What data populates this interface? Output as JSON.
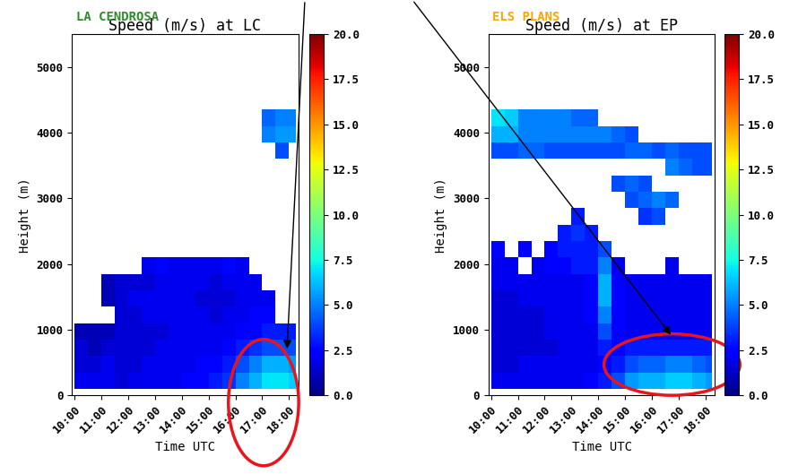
{
  "chart_data": [
    {
      "type": "heatmap",
      "subtitle": "LA CENDROSA",
      "color": "#2e8b2e",
      "title": "Speed (m/s) at LC",
      "x_label": "Time UTC",
      "y_label": "Height (m)",
      "xlim": [
        9.9,
        18.35
      ],
      "xticks": [
        {
          "value": 10,
          "label": "10:00"
        },
        {
          "value": 11,
          "label": "11:00"
        },
        {
          "value": 12,
          "label": "12:00"
        },
        {
          "value": 13,
          "label": "13:00"
        },
        {
          "value": 14,
          "label": "14:00"
        },
        {
          "value": 15,
          "label": "15:00"
        },
        {
          "value": 16,
          "label": "16:00"
        },
        {
          "value": 17,
          "label": "17:00"
        },
        {
          "value": 18,
          "label": "18:00"
        }
      ],
      "ylim": [
        0,
        5500
      ],
      "yticks": [
        0,
        1000,
        2000,
        3000,
        4000,
        5000
      ],
      "x_bins": [
        10,
        10.5,
        11,
        11.5,
        12,
        12.5,
        13,
        13.5,
        14,
        14.5,
        15,
        15.5,
        16,
        16.5,
        17,
        17.5,
        18,
        18.25
      ],
      "y_bins": [
        100,
        350,
        600,
        850,
        1100,
        1350,
        1600,
        1850,
        2100,
        2350,
        2600,
        2850,
        3100,
        3350,
        3600,
        3850,
        4100,
        4350
      ],
      "cells": [
        [
          2,
          2,
          2,
          1.5,
          2,
          2,
          2,
          2,
          2.5,
          2.5,
          3,
          3.5,
          5,
          6,
          7,
          7,
          6.5
        ],
        [
          1.5,
          1.5,
          2,
          1.5,
          1.5,
          2,
          2,
          2,
          2,
          2.5,
          2.5,
          3,
          4,
          5,
          6,
          6,
          5.5
        ],
        [
          1.5,
          1,
          1.5,
          1.5,
          1.5,
          1.5,
          2,
          2,
          2,
          2,
          2,
          2.5,
          3,
          3.5,
          4,
          4,
          4
        ],
        [
          1,
          1,
          1,
          1.5,
          1.5,
          1.5,
          1.5,
          2,
          2,
          2,
          2,
          2,
          2.5,
          2.5,
          3,
          3,
          3
        ],
        [
          null,
          null,
          null,
          1.5,
          1.5,
          2,
          2,
          2,
          2,
          2,
          1.5,
          2,
          2,
          2.5,
          2.5,
          null,
          null
        ],
        [
          null,
          null,
          1,
          1.5,
          2,
          2,
          2,
          2,
          2,
          1.5,
          1.5,
          1.5,
          2,
          2,
          2,
          null,
          null
        ],
        [
          null,
          null,
          1,
          1.5,
          1.5,
          1.5,
          2,
          2,
          2,
          2,
          1.5,
          2,
          2,
          2,
          null,
          null,
          null
        ],
        [
          null,
          null,
          null,
          null,
          null,
          2,
          2.5,
          2,
          2,
          2,
          2,
          2.5,
          2,
          null,
          null,
          null,
          null
        ],
        [
          null,
          null,
          null,
          null,
          null,
          null,
          null,
          null,
          null,
          null,
          null,
          null,
          null,
          null,
          null,
          null,
          null
        ],
        [
          null,
          null,
          null,
          null,
          null,
          null,
          null,
          null,
          null,
          null,
          null,
          null,
          null,
          null,
          null,
          null,
          null
        ],
        [
          null,
          null,
          null,
          null,
          null,
          null,
          null,
          null,
          null,
          null,
          null,
          null,
          null,
          null,
          null,
          null,
          null
        ],
        [
          null,
          null,
          null,
          null,
          null,
          null,
          null,
          null,
          null,
          null,
          null,
          null,
          null,
          null,
          null,
          null,
          null
        ],
        [
          null,
          null,
          null,
          null,
          null,
          null,
          null,
          null,
          null,
          null,
          null,
          null,
          null,
          null,
          null,
          null,
          null
        ],
        [
          null,
          null,
          null,
          null,
          null,
          null,
          null,
          null,
          null,
          null,
          null,
          null,
          null,
          null,
          null,
          null,
          null
        ],
        [
          null,
          null,
          null,
          null,
          null,
          null,
          null,
          null,
          null,
          null,
          null,
          null,
          null,
          null,
          null,
          4,
          null
        ],
        [
          null,
          null,
          null,
          null,
          null,
          null,
          null,
          null,
          null,
          null,
          null,
          null,
          null,
          null,
          5,
          5.5,
          5.5
        ],
        [
          null,
          null,
          null,
          null,
          null,
          null,
          null,
          null,
          null,
          null,
          null,
          null,
          null,
          null,
          4.5,
          5,
          5
        ]
      ],
      "colorbar": {
        "range": [
          0,
          20
        ],
        "ticks": [
          {
            "value": 0,
            "label": "0.0"
          },
          {
            "value": 2.5,
            "label": "2.5"
          },
          {
            "value": 5,
            "label": "5.0"
          },
          {
            "value": 7.5,
            "label": "7.5"
          },
          {
            "value": 10,
            "label": "10.0"
          },
          {
            "value": 12.5,
            "label": "12.5"
          },
          {
            "value": 15,
            "label": "15.0"
          },
          {
            "value": 17.5,
            "label": "17.5"
          },
          {
            "value": 20,
            "label": "20.0"
          }
        ]
      }
    },
    {
      "type": "heatmap",
      "subtitle": "ELS PLANS",
      "color": "#ffa500",
      "title": "Speed (m/s) at EP",
      "x_label": "Time UTC",
      "y_label": "Height (m)",
      "xlim": [
        9.9,
        18.35
      ],
      "xticks": [
        {
          "value": 10,
          "label": "10:00"
        },
        {
          "value": 11,
          "label": "11:00"
        },
        {
          "value": 12,
          "label": "12:00"
        },
        {
          "value": 13,
          "label": "13:00"
        },
        {
          "value": 14,
          "label": "14:00"
        },
        {
          "value": 15,
          "label": "15:00"
        },
        {
          "value": 16,
          "label": "16:00"
        },
        {
          "value": 17,
          "label": "17:00"
        },
        {
          "value": 18,
          "label": "18:00"
        }
      ],
      "ylim": [
        0,
        5500
      ],
      "yticks": [
        0,
        1000,
        2000,
        3000,
        4000,
        5000
      ],
      "x_bins": [
        10,
        10.5,
        11,
        11.5,
        12,
        12.5,
        13,
        13.5,
        14,
        14.5,
        15,
        15.5,
        16,
        16.5,
        17,
        17.5,
        18,
        18.25
      ],
      "y_bins": [
        100,
        350,
        600,
        850,
        1100,
        1350,
        1600,
        1850,
        2100,
        2350,
        2600,
        2850,
        3100,
        3350,
        3600,
        3850,
        4100,
        4350
      ],
      "cells": [
        [
          2,
          2,
          2,
          2,
          2,
          2,
          2,
          2.5,
          3,
          4,
          5.5,
          6,
          6,
          6.5,
          6.5,
          6,
          5.5
        ],
        [
          1.5,
          1.5,
          2,
          2,
          2,
          2,
          2,
          2,
          2.5,
          3,
          4,
          4.5,
          4.5,
          5,
          5,
          4.5,
          4
        ],
        [
          1.5,
          1.5,
          1.5,
          1.5,
          1.5,
          2,
          2,
          2,
          3,
          2.5,
          3,
          3,
          3,
          3,
          3,
          3,
          3
        ],
        [
          1.5,
          1.5,
          1.5,
          1.5,
          2,
          2,
          2,
          2,
          4,
          2.5,
          2,
          2,
          2,
          2,
          2,
          2,
          2
        ],
        [
          1.5,
          1.5,
          1.5,
          1.5,
          2,
          2,
          2,
          2.5,
          5,
          2.5,
          2,
          2,
          2,
          2,
          2,
          2,
          2
        ],
        [
          1.5,
          1.5,
          2,
          2,
          2,
          2,
          2,
          2.5,
          6,
          2.5,
          2,
          2,
          2,
          2,
          2,
          2,
          2
        ],
        [
          2,
          2,
          2,
          2,
          2,
          2,
          2,
          2.5,
          6,
          2.5,
          2,
          2,
          2,
          2,
          2,
          2,
          2
        ],
        [
          2,
          2,
          null,
          2,
          2.5,
          2.5,
          3,
          3,
          5,
          2,
          null,
          null,
          null,
          2,
          null,
          null,
          null
        ],
        [
          2.5,
          null,
          2.5,
          null,
          2.5,
          3,
          3,
          3,
          4,
          null,
          null,
          null,
          null,
          null,
          null,
          null,
          null
        ],
        [
          null,
          null,
          null,
          null,
          null,
          3,
          3.5,
          3,
          null,
          null,
          null,
          null,
          null,
          null,
          null,
          null,
          null
        ],
        [
          null,
          null,
          null,
          null,
          null,
          null,
          3,
          null,
          null,
          null,
          null,
          3.5,
          4,
          null,
          null,
          null,
          null
        ],
        [
          null,
          null,
          null,
          null,
          null,
          null,
          null,
          null,
          null,
          null,
          4,
          4.5,
          5,
          4.5,
          null,
          null,
          null
        ],
        [
          null,
          null,
          null,
          null,
          null,
          null,
          null,
          null,
          null,
          4,
          4.5,
          4,
          null,
          null,
          null,
          null,
          null
        ],
        [
          null,
          null,
          null,
          null,
          null,
          null,
          null,
          null,
          null,
          null,
          null,
          null,
          null,
          5,
          4.5,
          4,
          4
        ],
        [
          4,
          4,
          4.5,
          4.5,
          4,
          4,
          4,
          4,
          4,
          4,
          4.5,
          4.5,
          4,
          4.5,
          4,
          4,
          4
        ],
        [
          6,
          6,
          5,
          5,
          5,
          5,
          5,
          5,
          5,
          4.5,
          4,
          null,
          null,
          null,
          null,
          null,
          null
        ],
        [
          7,
          6.5,
          5,
          5,
          5,
          5,
          4.5,
          4.5,
          null,
          null,
          null,
          null,
          null,
          null,
          null,
          null,
          null
        ]
      ],
      "colorbar": {
        "range": [
          0,
          20
        ],
        "ticks": [
          {
            "value": 0,
            "label": "0.0"
          },
          {
            "value": 2.5,
            "label": "2.5"
          },
          {
            "value": 5,
            "label": "5.0"
          },
          {
            "value": 7.5,
            "label": "7.5"
          },
          {
            "value": 10,
            "label": "10.0"
          },
          {
            "value": 12.5,
            "label": "12.5"
          },
          {
            "value": 15,
            "label": "15.0"
          },
          {
            "value": 17.5,
            "label": "17.5"
          },
          {
            "value": 20,
            "label": "20.0"
          }
        ]
      }
    }
  ]
}
